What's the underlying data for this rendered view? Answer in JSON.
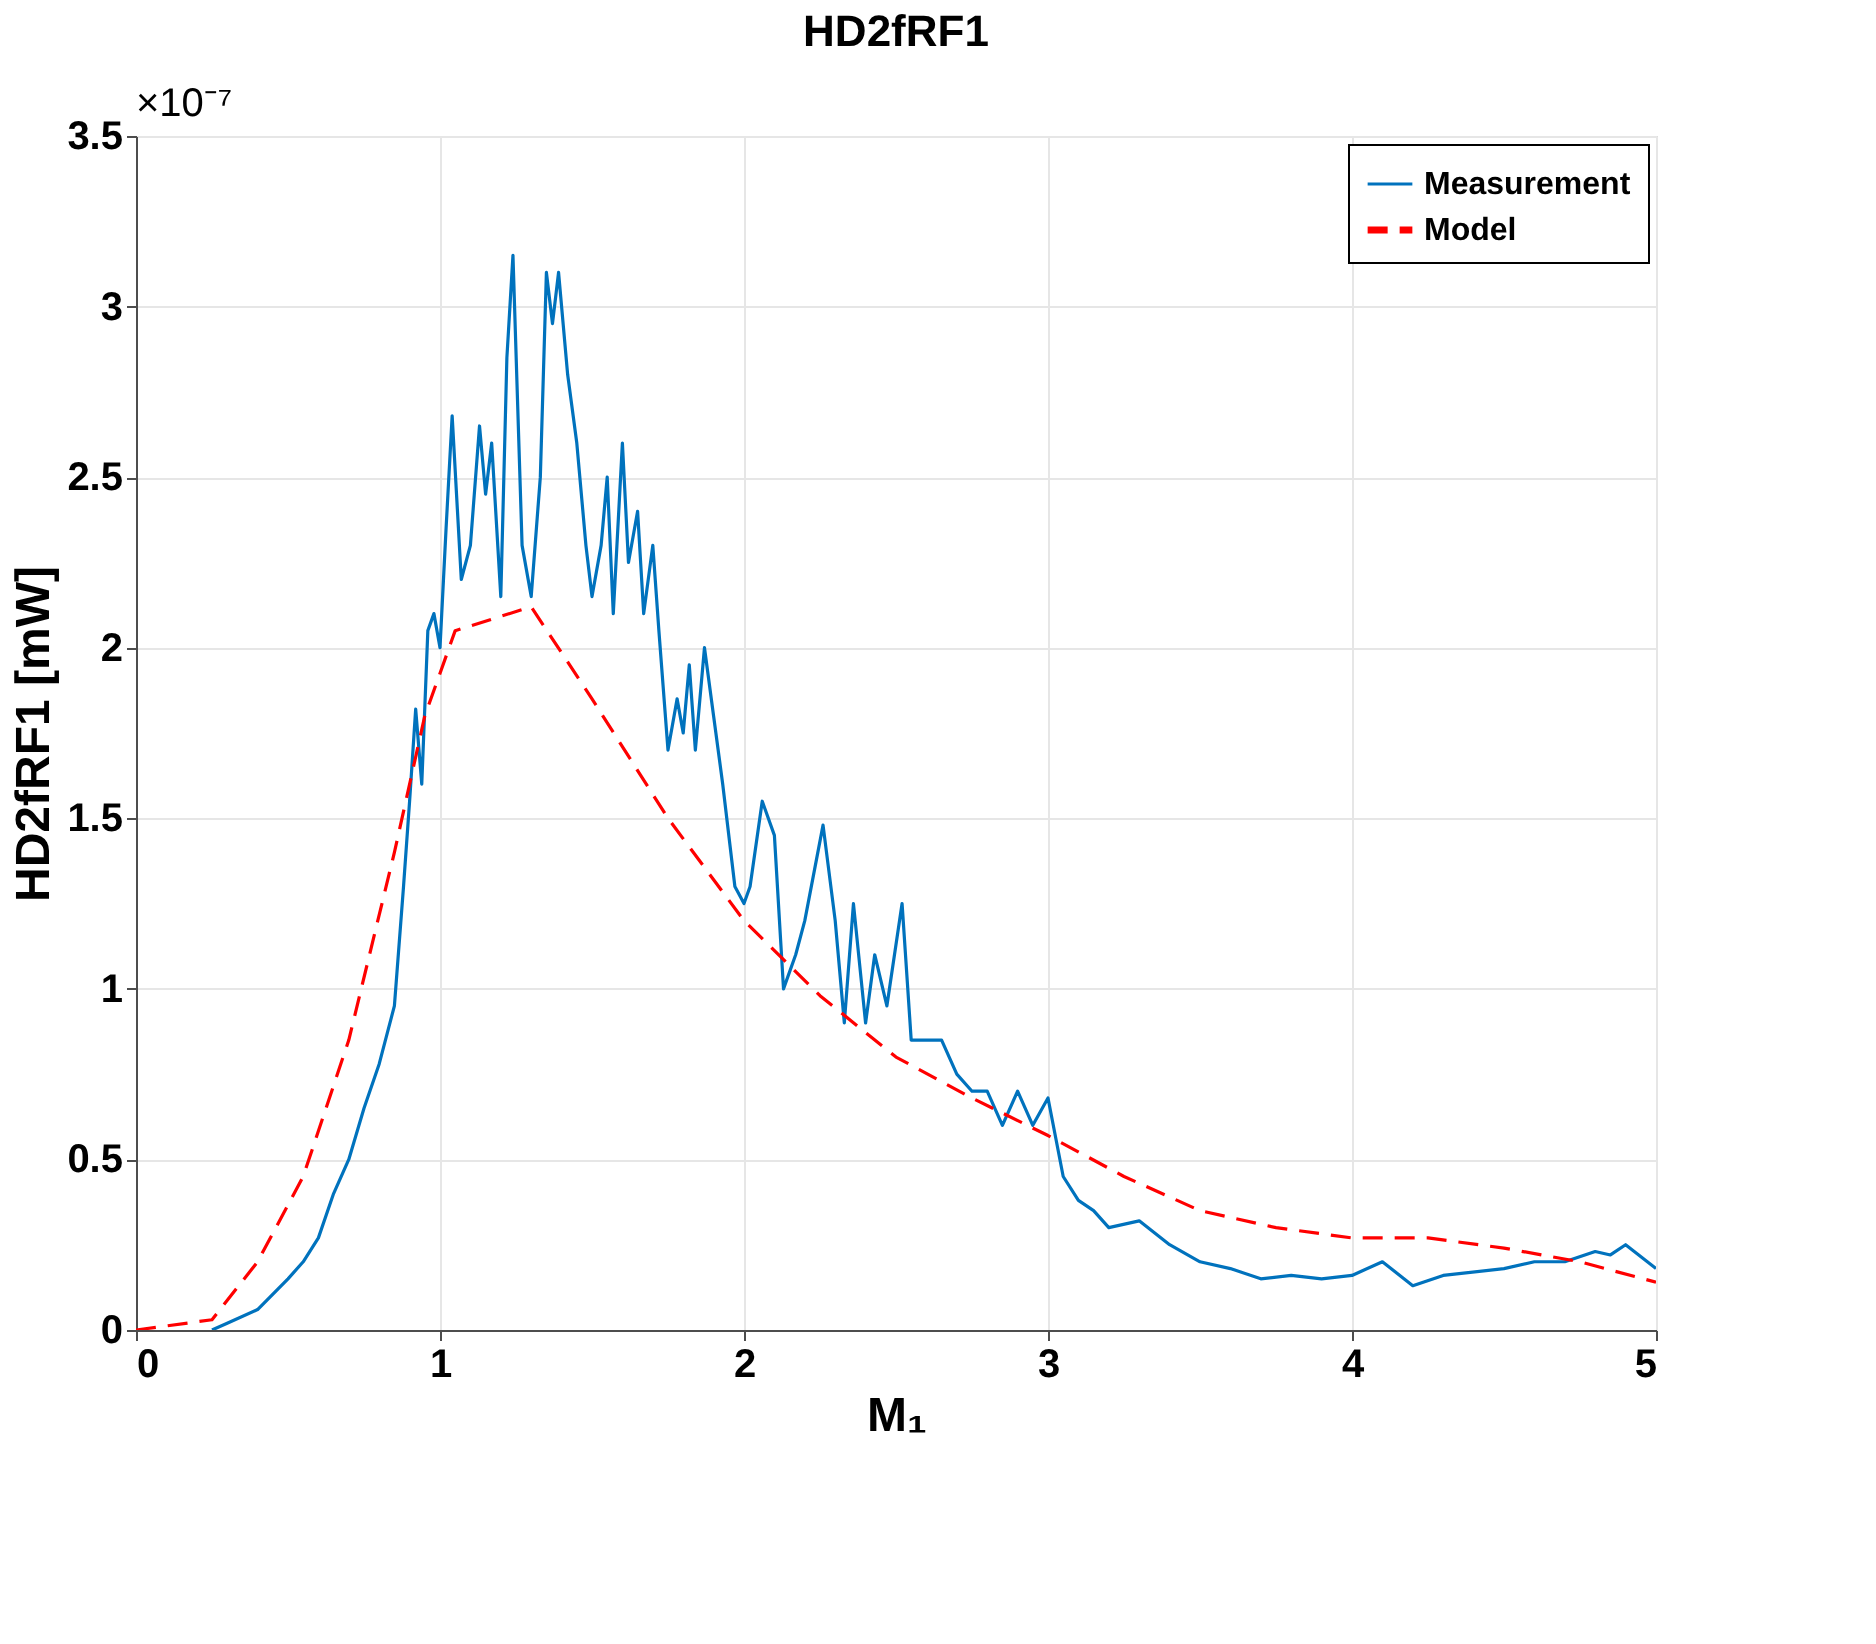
{
  "chart_data": {
    "type": "line",
    "title": "HD2fRF1",
    "xlabel": "M₁",
    "ylabel": "HD2fRF1 [mW]",
    "annotations": [
      "×10⁻⁷"
    ],
    "xlim": [
      0,
      5
    ],
    "xticks": [
      0,
      1,
      2,
      3,
      4,
      5
    ],
    "ylim": [
      0,
      3.5
    ],
    "yticks": [
      0,
      0.5,
      1,
      1.5,
      2,
      2.5,
      3,
      3.5
    ],
    "grid": true,
    "legend": "top right",
    "series": [
      {
        "name": "Measurement",
        "color": "#0072bd",
        "line_style": "solid",
        "x": [
          0.25,
          0.3,
          0.4,
          0.5,
          0.55,
          0.6,
          0.65,
          0.7,
          0.75,
          0.8,
          0.85,
          0.88,
          0.9,
          0.92,
          0.94,
          0.96,
          0.98,
          1.0,
          1.02,
          1.04,
          1.07,
          1.1,
          1.13,
          1.15,
          1.17,
          1.2,
          1.22,
          1.24,
          1.27,
          1.3,
          1.33,
          1.35,
          1.37,
          1.39,
          1.42,
          1.45,
          1.48,
          1.5,
          1.53,
          1.55,
          1.57,
          1.6,
          1.62,
          1.65,
          1.67,
          1.7,
          1.72,
          1.75,
          1.78,
          1.8,
          1.82,
          1.84,
          1.87,
          1.9,
          1.93,
          1.97,
          2.0,
          2.02,
          2.06,
          2.1,
          2.13,
          2.17,
          2.2,
          2.26,
          2.3,
          2.33,
          2.36,
          2.4,
          2.43,
          2.47,
          2.52,
          2.55,
          2.6,
          2.65,
          2.7,
          2.75,
          2.8,
          2.85,
          2.9,
          2.95,
          3.0,
          3.05,
          3.1,
          3.15,
          3.2,
          3.3,
          3.4,
          3.5,
          3.6,
          3.7,
          3.8,
          3.9,
          4.0,
          4.1,
          4.2,
          4.3,
          4.5,
          4.6,
          4.7,
          4.8,
          4.85,
          4.9,
          5.0
        ],
        "values": [
          0.0,
          0.02,
          0.06,
          0.15,
          0.2,
          0.27,
          0.4,
          0.5,
          0.65,
          0.78,
          0.95,
          1.3,
          1.55,
          1.82,
          1.6,
          2.05,
          2.1,
          2.0,
          2.35,
          2.68,
          2.2,
          2.3,
          2.65,
          2.45,
          2.6,
          2.15,
          2.85,
          3.15,
          2.3,
          2.15,
          2.5,
          3.1,
          2.95,
          3.1,
          2.8,
          2.6,
          2.3,
          2.15,
          2.3,
          2.5,
          2.1,
          2.6,
          2.25,
          2.4,
          2.1,
          2.3,
          2.05,
          1.7,
          1.85,
          1.75,
          1.95,
          1.7,
          2.0,
          1.8,
          1.6,
          1.3,
          1.25,
          1.3,
          1.55,
          1.45,
          1.0,
          1.1,
          1.2,
          1.48,
          1.2,
          0.9,
          1.25,
          0.9,
          1.1,
          0.95,
          1.25,
          0.85,
          0.85,
          0.85,
          0.75,
          0.7,
          0.7,
          0.6,
          0.7,
          0.6,
          0.68,
          0.45,
          0.38,
          0.35,
          0.3,
          0.32,
          0.25,
          0.2,
          0.18,
          0.15,
          0.16,
          0.15,
          0.16,
          0.2,
          0.13,
          0.16,
          0.18,
          0.2,
          0.2,
          0.23,
          0.22,
          0.25,
          0.18
        ]
      },
      {
        "name": "Model",
        "color": "#ff0000",
        "line_style": "dashed",
        "x": [
          0,
          0.25,
          0.4,
          0.55,
          0.7,
          0.85,
          0.95,
          1.05,
          1.3,
          1.5,
          1.75,
          2.0,
          2.25,
          2.5,
          2.75,
          3.0,
          3.25,
          3.5,
          3.75,
          4.0,
          4.25,
          4.5,
          4.75,
          5.0
        ],
        "values": [
          0,
          0.03,
          0.2,
          0.45,
          0.85,
          1.4,
          1.8,
          2.05,
          2.12,
          1.85,
          1.5,
          1.2,
          0.98,
          0.8,
          0.68,
          0.57,
          0.45,
          0.35,
          0.3,
          0.27,
          0.27,
          0.24,
          0.2,
          0.14
        ]
      }
    ]
  }
}
